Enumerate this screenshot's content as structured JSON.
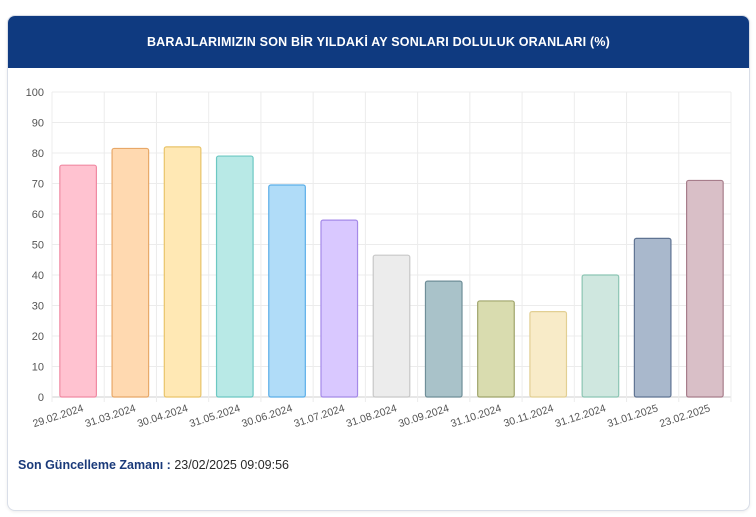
{
  "header": {
    "title": "BARAJLARIMIZIN SON BİR YILDAKİ AY SONLARI DOLULUK ORANLARI (%)"
  },
  "footer": {
    "label": "Son Güncelleme Zamanı :",
    "value": "23/02/2025 09:09:56"
  },
  "chart_data": {
    "type": "bar",
    "categories": [
      "29.02.2024",
      "31.03.2024",
      "30.04.2024",
      "31.05.2024",
      "30.06.2024",
      "31.07.2024",
      "31.08.2024",
      "30.09.2024",
      "31.10.2024",
      "30.11.2024",
      "31.12.2024",
      "31.01.2025",
      "23.02.2025"
    ],
    "values": [
      76,
      81.5,
      82,
      79,
      69.5,
      58,
      46.5,
      38,
      31.5,
      28,
      40,
      52,
      71
    ],
    "title": "BARAJLARIMIZIN SON BİR YILDAKİ AY SONLARI DOLULUK ORANLARI (%)",
    "xlabel": "",
    "ylabel": "",
    "ylim": [
      0,
      100
    ],
    "yticks": [
      0,
      10,
      20,
      30,
      40,
      50,
      60,
      70,
      80,
      90,
      100
    ],
    "grid": true,
    "legend": "none",
    "colors": [
      {
        "fill": "#ffc2d0",
        "stroke": "#f08aa3"
      },
      {
        "fill": "#ffd9b0",
        "stroke": "#e8a868"
      },
      {
        "fill": "#ffe8b4",
        "stroke": "#e9c46a"
      },
      {
        "fill": "#b8e9e6",
        "stroke": "#6cc8c2"
      },
      {
        "fill": "#b0dcf8",
        "stroke": "#5aaee8"
      },
      {
        "fill": "#d9c8ff",
        "stroke": "#a58ae8"
      },
      {
        "fill": "#ececec",
        "stroke": "#c8c8c8"
      },
      {
        "fill": "#a9c2c9",
        "stroke": "#6f8e98"
      },
      {
        "fill": "#d9dcaf",
        "stroke": "#9fa46a"
      },
      {
        "fill": "#f8ebc8",
        "stroke": "#e2cf93"
      },
      {
        "fill": "#cfe7df",
        "stroke": "#8cc5b3"
      },
      {
        "fill": "#a9b8cc",
        "stroke": "#5f7392"
      },
      {
        "fill": "#d9bfc7",
        "stroke": "#a77d8b"
      }
    ]
  }
}
